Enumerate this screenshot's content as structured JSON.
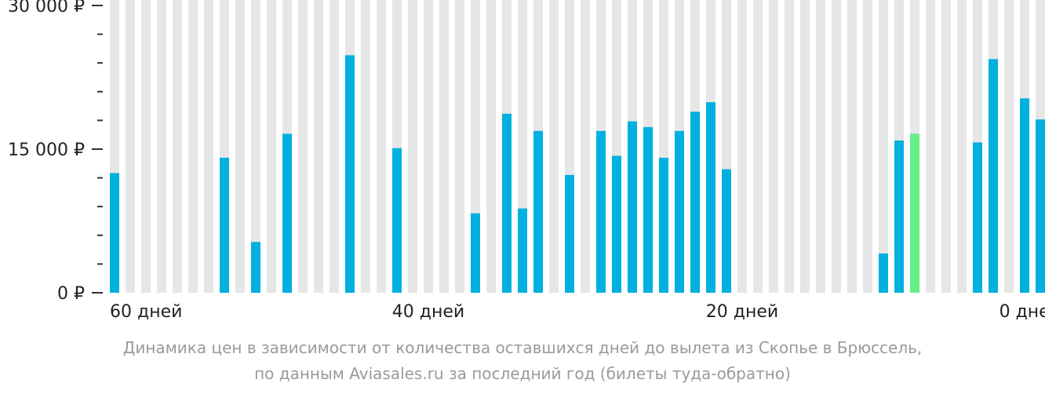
{
  "chart_data": {
    "type": "bar",
    "x_tick_labels": [
      "60 дней",
      "40 дней",
      "20 дней",
      "0 дней"
    ],
    "y_tick_labels": [
      "30 000 ₽",
      "15 000 ₽",
      "0 ₽"
    ],
    "ylim": [
      0,
      30000
    ],
    "x": [
      60,
      59,
      58,
      57,
      56,
      55,
      54,
      53,
      52,
      51,
      50,
      49,
      48,
      47,
      46,
      45,
      44,
      43,
      42,
      41,
      40,
      39,
      38,
      37,
      36,
      35,
      34,
      33,
      32,
      31,
      30,
      29,
      28,
      27,
      26,
      25,
      24,
      23,
      22,
      21,
      20,
      19,
      18,
      17,
      16,
      15,
      14,
      13,
      12,
      11,
      10,
      9,
      8,
      7,
      6,
      5,
      4,
      3,
      2,
      1,
      0
    ],
    "values": [
      12500,
      null,
      null,
      null,
      null,
      null,
      null,
      14100,
      null,
      5300,
      null,
      16600,
      null,
      null,
      null,
      24800,
      null,
      null,
      15100,
      null,
      null,
      null,
      null,
      8300,
      null,
      18700,
      8800,
      16900,
      null,
      12300,
      null,
      16900,
      14300,
      17900,
      17300,
      14100,
      16900,
      18900,
      19900,
      12900,
      null,
      null,
      null,
      null,
      null,
      null,
      null,
      null,
      null,
      4100,
      15900,
      16600,
      null,
      null,
      null,
      15700,
      24400,
      null,
      20300,
      18100,
      null
    ],
    "highlight_x": 9,
    "colors": {
      "bar": "#00b0de",
      "highlight": "#66ee88",
      "background_stripe": "#e6e6e6"
    },
    "grid": false
  },
  "caption": {
    "line1": "Динамика цен в зависимости от количества оставшихся дней до вылета из Скопье в Брюссель,",
    "line2": "по данным Aviasales.ru за последний год (билеты туда-обратно)"
  }
}
